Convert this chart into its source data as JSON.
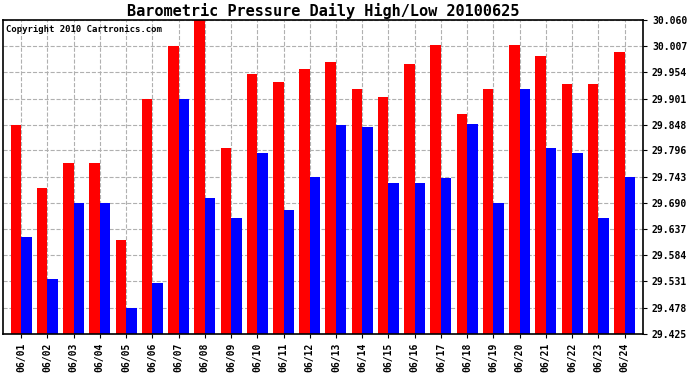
{
  "title": "Barometric Pressure Daily High/Low 20100625",
  "copyright": "Copyright 2010 Cartronics.com",
  "dates": [
    "06/01",
    "06/02",
    "06/03",
    "06/04",
    "06/05",
    "06/06",
    "06/07",
    "06/08",
    "06/09",
    "06/10",
    "06/11",
    "06/12",
    "06/13",
    "06/14",
    "06/15",
    "06/16",
    "06/17",
    "06/18",
    "06/19",
    "06/20",
    "06/21",
    "06/22",
    "06/23",
    "06/24"
  ],
  "highs": [
    29.848,
    29.72,
    29.77,
    29.77,
    29.615,
    29.9,
    30.007,
    30.06,
    29.8,
    29.95,
    29.935,
    29.96,
    29.975,
    29.92,
    29.905,
    29.97,
    30.01,
    29.87,
    29.92,
    30.01,
    29.988,
    29.93,
    29.93,
    29.995
  ],
  "lows": [
    29.62,
    29.535,
    29.69,
    29.69,
    29.478,
    29.528,
    29.9,
    29.7,
    29.66,
    29.79,
    29.675,
    29.743,
    29.848,
    29.843,
    29.73,
    29.73,
    29.74,
    29.849,
    29.69,
    29.92,
    29.8,
    29.79,
    29.66,
    29.743
  ],
  "high_color": "#ff0000",
  "low_color": "#0000ff",
  "bg_color": "#ffffff",
  "grid_color": "#b0b0b0",
  "ylim_min": 29.425,
  "ylim_max": 30.06,
  "yticks": [
    29.425,
    29.478,
    29.531,
    29.584,
    29.637,
    29.69,
    29.743,
    29.796,
    29.848,
    29.901,
    29.954,
    30.007,
    30.06
  ],
  "bar_width": 0.4,
  "title_fontsize": 11,
  "tick_fontsize": 7,
  "copyright_fontsize": 6.5
}
